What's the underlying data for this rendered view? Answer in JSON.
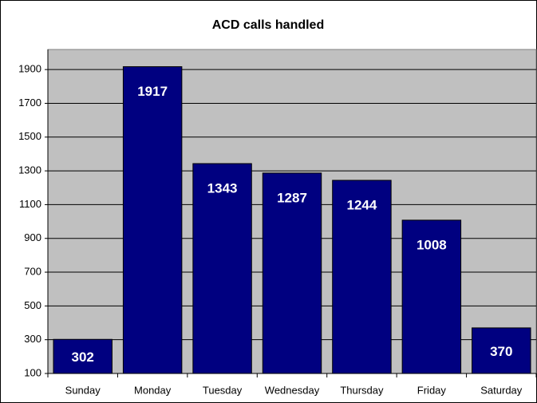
{
  "chart_data": {
    "type": "bar",
    "title": "ACD calls handled",
    "categories": [
      "Sunday",
      "Monday",
      "Tuesday",
      "Wednesday",
      "Thursday",
      "Friday",
      "Saturday"
    ],
    "values": [
      302,
      1917,
      1343,
      1287,
      1244,
      1008,
      370
    ],
    "color": "#000080",
    "ylim": [
      100,
      2000
    ],
    "yticks": [
      100,
      300,
      500,
      700,
      900,
      1100,
      1300,
      1500,
      1700,
      1900
    ],
    "grid": true
  }
}
